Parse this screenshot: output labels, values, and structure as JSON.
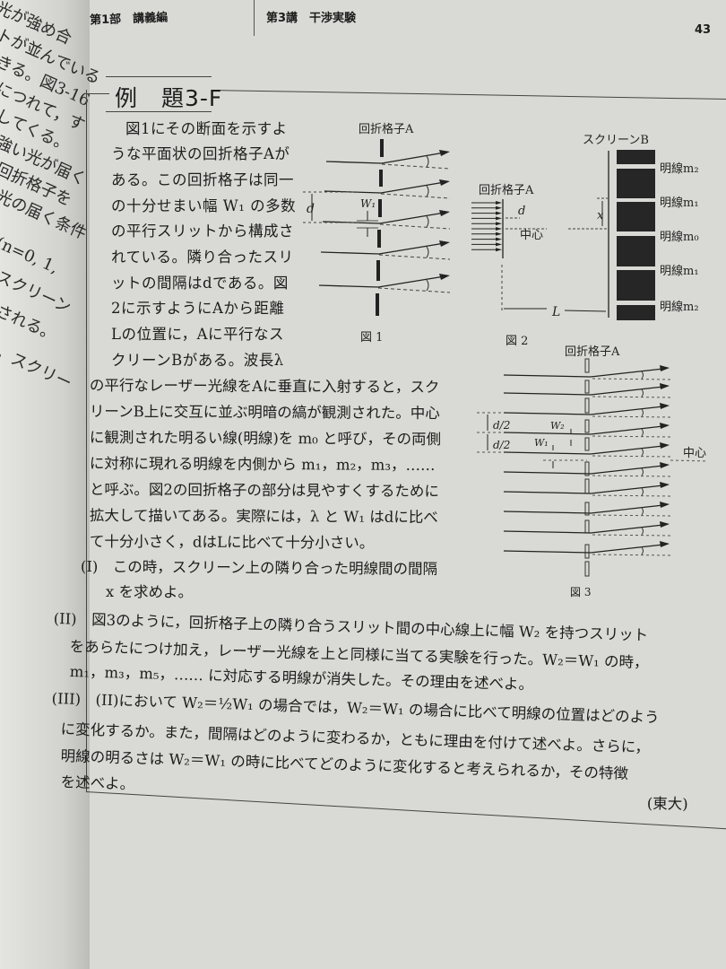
{
  "left_page_fragments": [
    "光が強め合",
    "トが並んでいる",
    "きる。図3-16",
    "につれて，す",
    "してくる。",
    "強い光が届く",
    "回折格子を",
    "光の届く条件",
    "(n=0, 1,",
    "スクリーン",
    "される。",
    "，スクリー"
  ],
  "header": {
    "part": "第1部　講義編",
    "lecture": "第3講　干渉実験",
    "page_number": "43"
  },
  "problem": {
    "title": "例　題3-F",
    "intro_lines": [
      "図1にその断面を示すよ",
      "うな平面状の回折格子Aが",
      "ある。この回折格子は同一",
      "の十分せまい幅 W₁ の多数",
      "の平行スリットから構成さ",
      "れている。隣り合ったスリ",
      "ットの間隔はdである。図",
      "2に示すようにAから距離",
      "Lの位置に，Aに平行なス",
      "クリーンBがある。波長λ",
      "の平行なレーザー光線をAに垂直に入射すると，スク",
      "リーンB上に交互に並ぶ明暗の縞が観測された。中心",
      "に観測された明るい線(明線)を m₀ と呼び，その両側",
      "に対称に現れる明線を内側から m₁，m₂，m₃，……",
      "と呼ぶ。図2の回折格子の部分は見やすくするために",
      "拡大して描いてある。実際には，λ と W₁ はdに比べ",
      "て十分小さく，dはLに比べて十分小さい。"
    ],
    "q1_lines": [
      "(I)　この時，スクリーン上の隣り合った明線間の間隔",
      "x を求めよ。"
    ],
    "q2_lines": [
      "(II)　図3のように，回折格子上の隣り合うスリット間の中心線上に幅 W₂ を持つスリット",
      "をあらたにつけ加え，レーザー光線を上と同様に当てる実験を行った。W₂＝W₁ の時，",
      "m₁，m₃，m₅，…… に対応する明線が消失した。その理由を述べよ。"
    ],
    "q3_lines": [
      "(III)　(II)において W₂＝½W₁ の場合では，W₂＝W₁ の場合に比べて明線の位置はどのよう",
      "に変化するか。また，間隔はどのように変わるか，ともに理由を付けて述べよ。さらに，",
      "明線の明るさは W₂＝W₁ の時に比べてどのように変化すると考えられるか，その特徴",
      "を述べよ。"
    ],
    "source": "(東大)"
  },
  "figure1": {
    "grating_label": "回折格子A",
    "d_label": "d",
    "w1_label": "W₁",
    "caption": "図 1"
  },
  "figure2": {
    "screen_label": "スクリーンB",
    "grating_label": "回折格子A",
    "d_label": "d",
    "center_label": "中心",
    "x_label": "x",
    "L_label": "L",
    "fringes": [
      "明線m₂",
      "明線m₁",
      "明線m₀",
      "明線m₁",
      "明線m₂"
    ],
    "caption": "図 2"
  },
  "figure3": {
    "grating_label": "回折格子A",
    "half_d_label": "d/2",
    "half_d_label_2": "d/2",
    "w2_label": "W₂",
    "w1_label": "W₁",
    "center_label": "中心",
    "caption": "図 3"
  }
}
